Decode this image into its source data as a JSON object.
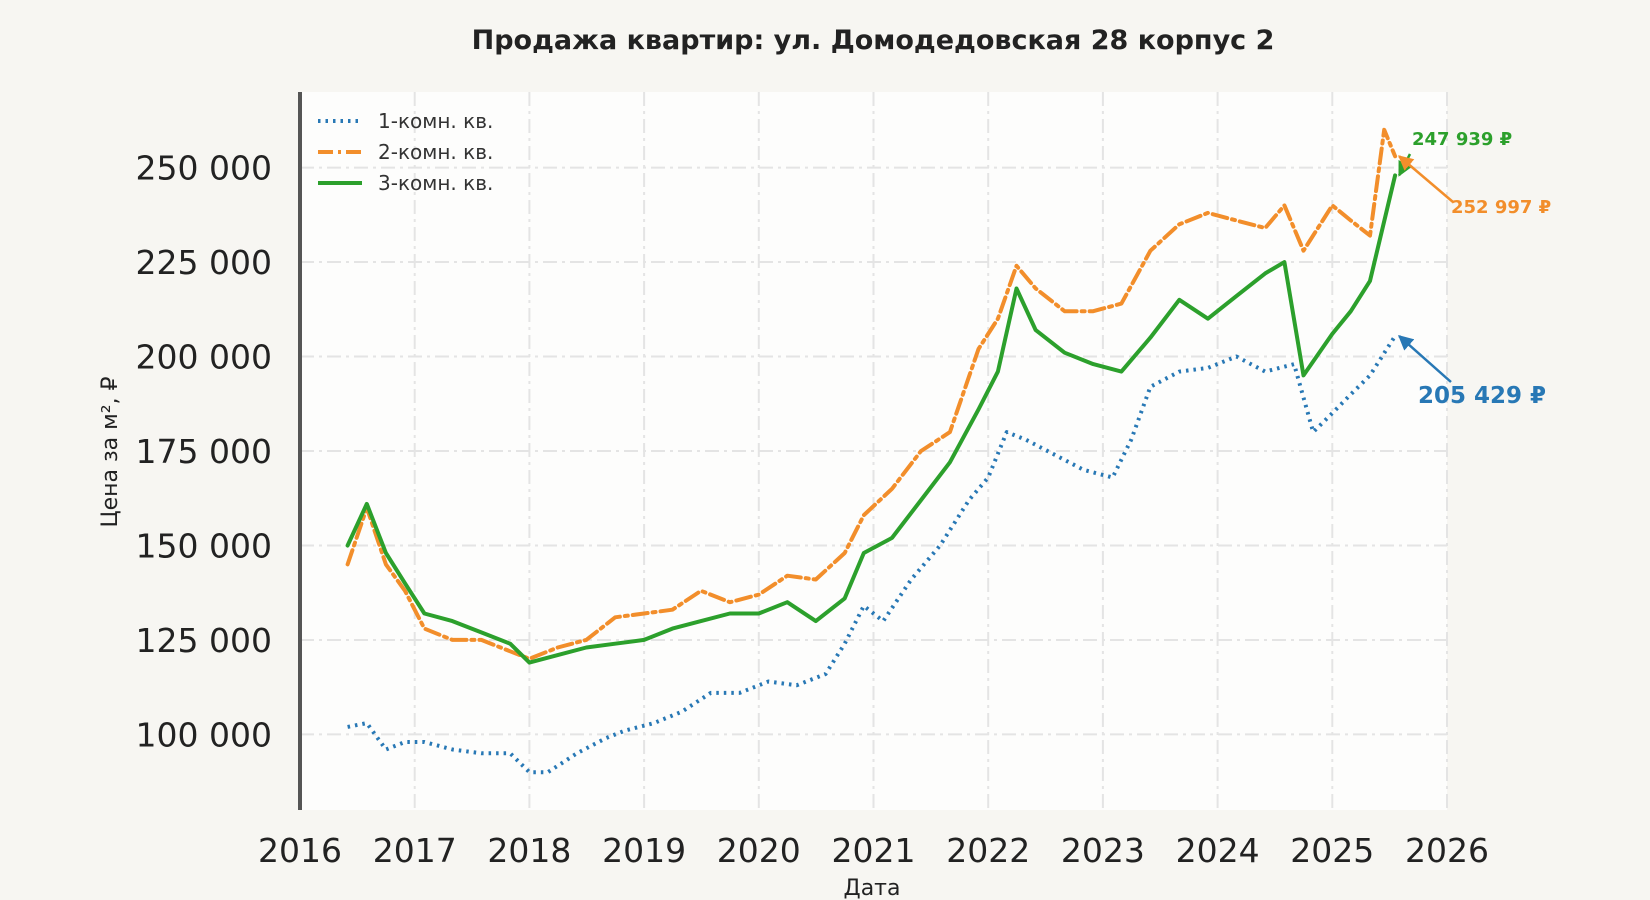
{
  "chart_data": {
    "type": "line",
    "title": "Продажа квартир: ул. Домодедовская 28 корпус 2",
    "xlabel": "Дата",
    "ylabel": "Цена за м², ₽",
    "xlim": [
      "2016-01-01",
      "2026-01-01"
    ],
    "ylim": [
      80000,
      270000
    ],
    "grid": true,
    "legend_position": "top-left",
    "x_ticks": [
      "2016",
      "2017",
      "2018",
      "2019",
      "2020",
      "2021",
      "2022",
      "2023",
      "2024",
      "2025",
      "2026"
    ],
    "y_ticks": [
      {
        "value": 100000,
        "label": "100 000"
      },
      {
        "value": 125000,
        "label": "125 000"
      },
      {
        "value": 150000,
        "label": "150 000"
      },
      {
        "value": 175000,
        "label": "175 000"
      },
      {
        "value": 200000,
        "label": "200 000"
      },
      {
        "value": 225000,
        "label": "225 000"
      },
      {
        "value": 250000,
        "label": "250 000"
      }
    ],
    "series": [
      {
        "name": "1-комн. кв.",
        "color": "#2878b5",
        "style": "dotted",
        "points": [
          [
            "2016-06-01",
            102000
          ],
          [
            "2016-08-01",
            103000
          ],
          [
            "2016-10-01",
            96000
          ],
          [
            "2016-12-01",
            98000
          ],
          [
            "2017-02-01",
            98000
          ],
          [
            "2017-05-01",
            96000
          ],
          [
            "2017-08-01",
            95000
          ],
          [
            "2017-11-01",
            95000
          ],
          [
            "2018-01-01",
            90000
          ],
          [
            "2018-03-01",
            90000
          ],
          [
            "2018-06-01",
            95000
          ],
          [
            "2018-09-01",
            99000
          ],
          [
            "2018-11-01",
            101000
          ],
          [
            "2019-02-01",
            103000
          ],
          [
            "2019-05-01",
            106000
          ],
          [
            "2019-08-01",
            111000
          ],
          [
            "2019-11-01",
            111000
          ],
          [
            "2020-02-01",
            114000
          ],
          [
            "2020-05-01",
            113000
          ],
          [
            "2020-08-01",
            116000
          ],
          [
            "2020-10-01",
            124000
          ],
          [
            "2020-12-01",
            134000
          ],
          [
            "2021-02-01",
            130000
          ],
          [
            "2021-05-01",
            141000
          ],
          [
            "2021-08-01",
            150000
          ],
          [
            "2021-11-01",
            162000
          ],
          [
            "2022-01-01",
            168000
          ],
          [
            "2022-03-01",
            180000
          ],
          [
            "2022-05-01",
            178000
          ],
          [
            "2022-08-01",
            174000
          ],
          [
            "2022-11-01",
            170000
          ],
          [
            "2023-02-01",
            168000
          ],
          [
            "2023-04-01",
            178000
          ],
          [
            "2023-06-01",
            192000
          ],
          [
            "2023-09-01",
            196000
          ],
          [
            "2023-12-01",
            197000
          ],
          [
            "2024-03-01",
            200000
          ],
          [
            "2024-06-01",
            196000
          ],
          [
            "2024-09-01",
            198000
          ],
          [
            "2024-11-01",
            180000
          ],
          [
            "2025-01-01",
            185000
          ],
          [
            "2025-03-01",
            190000
          ],
          [
            "2025-05-01",
            195000
          ],
          [
            "2025-07-20",
            205429
          ]
        ]
      },
      {
        "name": "2-комн. кв.",
        "color": "#f28e2b",
        "style": "dashdot",
        "points": [
          [
            "2016-06-01",
            145000
          ],
          [
            "2016-08-01",
            160000
          ],
          [
            "2016-10-01",
            145000
          ],
          [
            "2016-12-01",
            138000
          ],
          [
            "2017-02-01",
            128000
          ],
          [
            "2017-05-01",
            125000
          ],
          [
            "2017-08-01",
            125000
          ],
          [
            "2017-11-01",
            122000
          ],
          [
            "2018-01-01",
            120000
          ],
          [
            "2018-04-01",
            123000
          ],
          [
            "2018-07-01",
            125000
          ],
          [
            "2018-10-01",
            131000
          ],
          [
            "2019-01-01",
            132000
          ],
          [
            "2019-04-01",
            133000
          ],
          [
            "2019-07-01",
            138000
          ],
          [
            "2019-10-01",
            135000
          ],
          [
            "2020-01-01",
            137000
          ],
          [
            "2020-04-01",
            142000
          ],
          [
            "2020-07-01",
            141000
          ],
          [
            "2020-10-01",
            148000
          ],
          [
            "2020-12-01",
            158000
          ],
          [
            "2021-03-01",
            165000
          ],
          [
            "2021-06-01",
            175000
          ],
          [
            "2021-09-01",
            180000
          ],
          [
            "2021-12-01",
            202000
          ],
          [
            "2022-02-01",
            210000
          ],
          [
            "2022-04-01",
            224000
          ],
          [
            "2022-06-01",
            218000
          ],
          [
            "2022-09-01",
            212000
          ],
          [
            "2022-12-01",
            212000
          ],
          [
            "2023-03-01",
            214000
          ],
          [
            "2023-06-01",
            228000
          ],
          [
            "2023-09-01",
            235000
          ],
          [
            "2023-12-01",
            238000
          ],
          [
            "2024-03-01",
            236000
          ],
          [
            "2024-06-01",
            234000
          ],
          [
            "2024-08-01",
            240000
          ],
          [
            "2024-10-01",
            228000
          ],
          [
            "2025-01-01",
            240000
          ],
          [
            "2025-03-01",
            236000
          ],
          [
            "2025-05-01",
            232000
          ],
          [
            "2025-06-15",
            260000
          ],
          [
            "2025-07-20",
            252997
          ]
        ]
      },
      {
        "name": "3-комн. кв.",
        "color": "#2ca02c",
        "style": "solid",
        "points": [
          [
            "2016-06-01",
            150000
          ],
          [
            "2016-08-01",
            161000
          ],
          [
            "2016-10-01",
            148000
          ],
          [
            "2016-12-01",
            140000
          ],
          [
            "2017-02-01",
            132000
          ],
          [
            "2017-05-01",
            130000
          ],
          [
            "2017-08-01",
            127000
          ],
          [
            "2017-11-01",
            124000
          ],
          [
            "2018-01-01",
            119000
          ],
          [
            "2018-04-01",
            121000
          ],
          [
            "2018-07-01",
            123000
          ],
          [
            "2018-10-01",
            124000
          ],
          [
            "2019-01-01",
            125000
          ],
          [
            "2019-04-01",
            128000
          ],
          [
            "2019-07-01",
            130000
          ],
          [
            "2019-10-01",
            132000
          ],
          [
            "2020-01-01",
            132000
          ],
          [
            "2020-04-01",
            135000
          ],
          [
            "2020-07-01",
            130000
          ],
          [
            "2020-10-01",
            136000
          ],
          [
            "2020-12-01",
            148000
          ],
          [
            "2021-03-01",
            152000
          ],
          [
            "2021-06-01",
            162000
          ],
          [
            "2021-09-01",
            172000
          ],
          [
            "2021-12-01",
            186000
          ],
          [
            "2022-02-01",
            196000
          ],
          [
            "2022-04-01",
            218000
          ],
          [
            "2022-06-01",
            207000
          ],
          [
            "2022-09-01",
            201000
          ],
          [
            "2022-12-01",
            198000
          ],
          [
            "2023-03-01",
            196000
          ],
          [
            "2023-06-01",
            205000
          ],
          [
            "2023-09-01",
            215000
          ],
          [
            "2023-12-01",
            210000
          ],
          [
            "2024-03-01",
            216000
          ],
          [
            "2024-06-01",
            222000
          ],
          [
            "2024-08-01",
            225000
          ],
          [
            "2024-10-01",
            195000
          ],
          [
            "2025-01-01",
            206000
          ],
          [
            "2025-03-01",
            212000
          ],
          [
            "2025-05-01",
            220000
          ],
          [
            "2025-07-20",
            247939
          ]
        ]
      }
    ],
    "annotations": [
      {
        "text": "247 939 ₽",
        "series": "3-комн. кв.",
        "color": "#2ca02c",
        "size": "small"
      },
      {
        "text": "252 997 ₽",
        "series": "2-комн. кв.",
        "color": "#f28e2b",
        "size": "small"
      },
      {
        "text": "205 429 ₽",
        "series": "1-комн. кв.",
        "color": "#2878b5",
        "size": "large"
      }
    ]
  }
}
